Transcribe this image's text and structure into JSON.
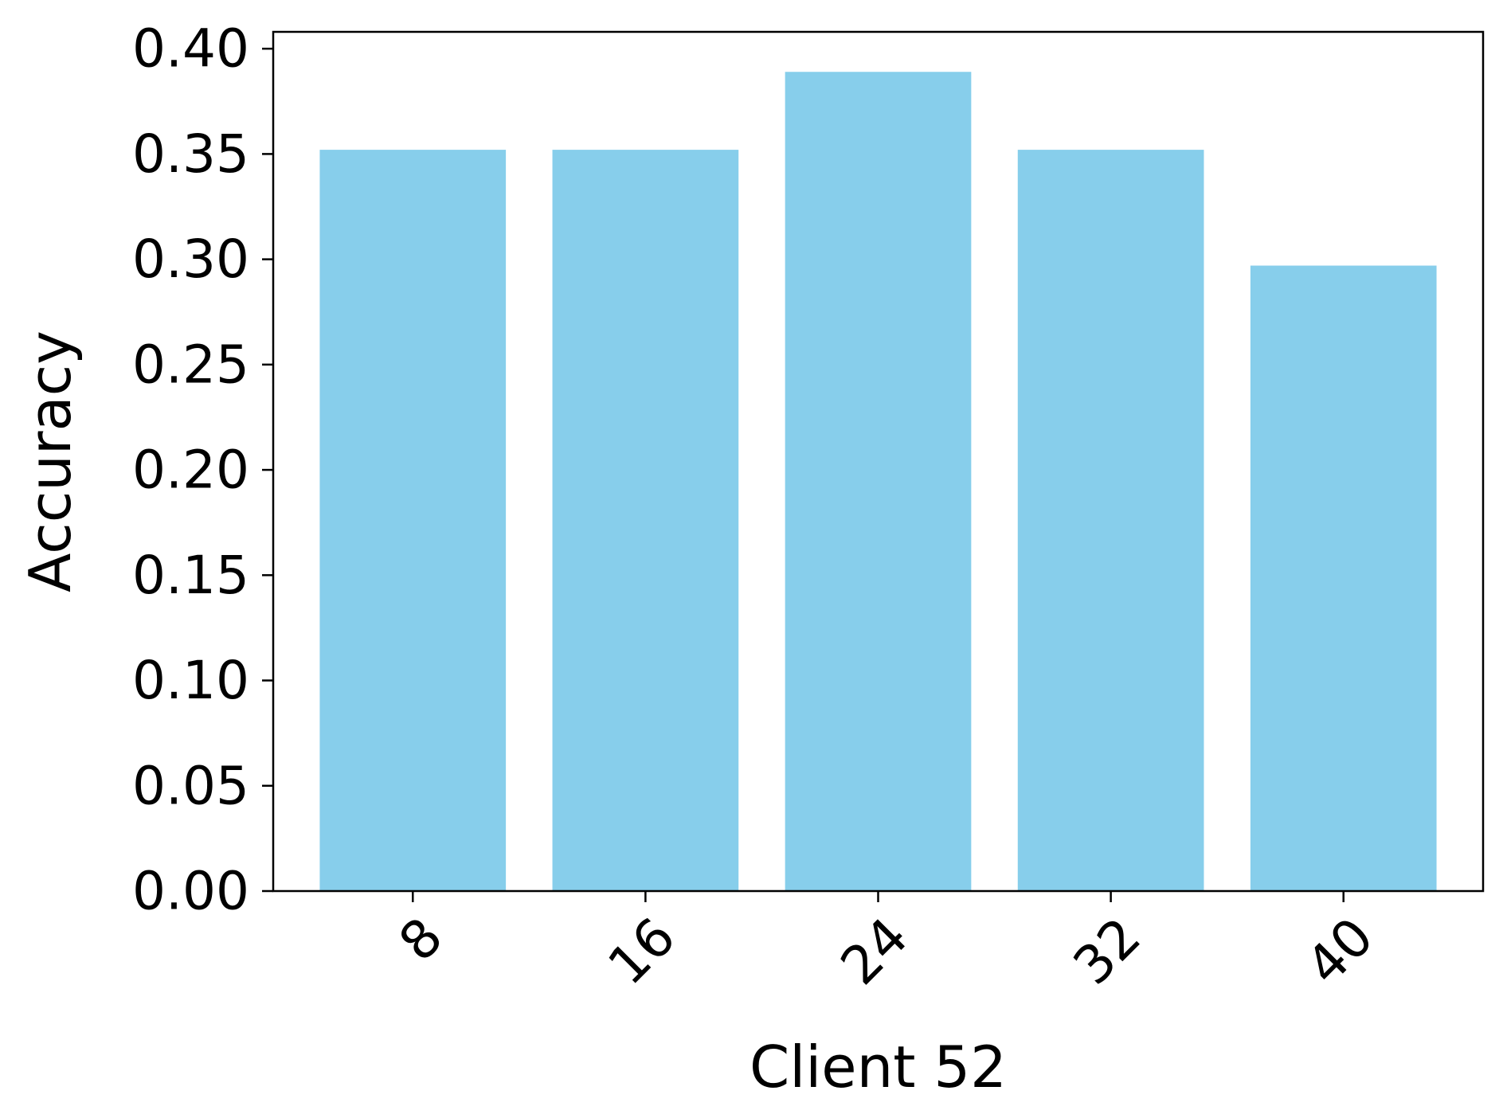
{
  "chart_data": {
    "type": "bar",
    "categories": [
      "8",
      "16",
      "24",
      "32",
      "40"
    ],
    "values": [
      0.352,
      0.352,
      0.389,
      0.352,
      0.297
    ],
    "title": "",
    "xlabel": "Client 52",
    "ylabel": "Accuracy",
    "ylim": [
      0,
      0.408
    ],
    "yticks": [
      "0.00",
      "0.05",
      "0.10",
      "0.15",
      "0.20",
      "0.25",
      "0.30",
      "0.35",
      "0.40"
    ],
    "grid": false,
    "legend": "none",
    "xtick_rotation": -45,
    "bar_color": "#87CEEB",
    "axis_color": "#000000"
  }
}
